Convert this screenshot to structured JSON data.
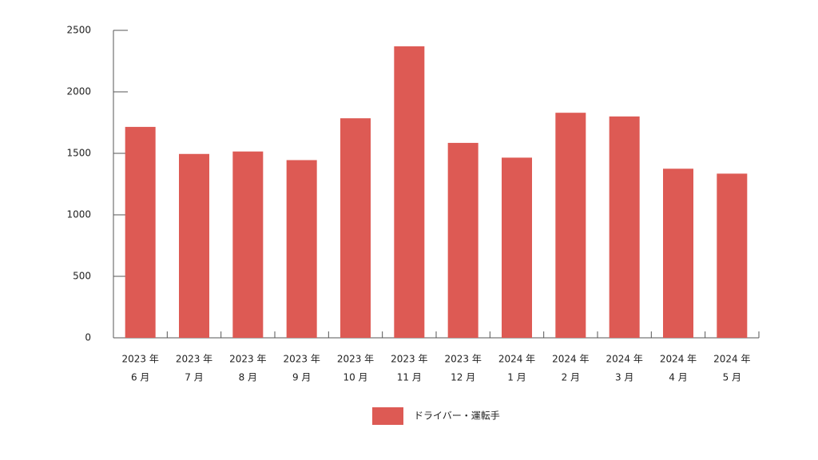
{
  "chart_data": {
    "type": "bar",
    "categories": [
      [
        "2023 年",
        "6 月"
      ],
      [
        "2023 年",
        "7 月"
      ],
      [
        "2023 年",
        "8 月"
      ],
      [
        "2023 年",
        "9 月"
      ],
      [
        "2023 年",
        "10 月"
      ],
      [
        "2023 年",
        "11 月"
      ],
      [
        "2023 年",
        "12 月"
      ],
      [
        "2024 年",
        "1 月"
      ],
      [
        "2024 年",
        "2 月"
      ],
      [
        "2024 年",
        "3 月"
      ],
      [
        "2024 年",
        "4 月"
      ],
      [
        "2024 年",
        "5 月"
      ]
    ],
    "series": [
      {
        "name": "ドライバー・運転手",
        "color": "#dd5a54",
        "values": [
          1715,
          1495,
          1515,
          1445,
          1785,
          2370,
          1585,
          1465,
          1830,
          1800,
          1375,
          1335
        ]
      }
    ],
    "ylim": [
      0,
      2500
    ],
    "yticks": [
      0,
      500,
      1000,
      1500,
      2000,
      2500
    ],
    "grid": false,
    "legend": "bottom"
  }
}
